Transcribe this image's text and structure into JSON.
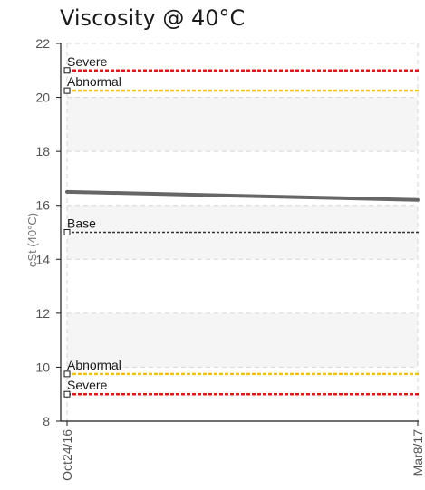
{
  "chart_data": {
    "type": "line",
    "title": "Viscosity @ 40°C",
    "ylabel": "cSt (40°C)",
    "xlabel": "",
    "ylim": [
      8,
      22
    ],
    "yticks": [
      8,
      10,
      12,
      14,
      16,
      18,
      20,
      22
    ],
    "x": [
      "Oct24/16",
      "Mar8/17"
    ],
    "series": [
      {
        "values": [
          16.5,
          16.2
        ],
        "color": "#666666"
      }
    ],
    "reference_lines": [
      {
        "label": "Severe",
        "value": 21.0,
        "color": "#e8141c"
      },
      {
        "label": "Abnormal",
        "value": 20.25,
        "color": "#f2c40c"
      },
      {
        "label": "Base",
        "value": 15.0,
        "color": "#333333"
      },
      {
        "label": "Abnormal",
        "value": 9.75,
        "color": "#f2c40c"
      },
      {
        "label": "Severe",
        "value": 9.0,
        "color": "#e8141c"
      }
    ],
    "grid": true,
    "band_color": "#f5f5f5"
  }
}
